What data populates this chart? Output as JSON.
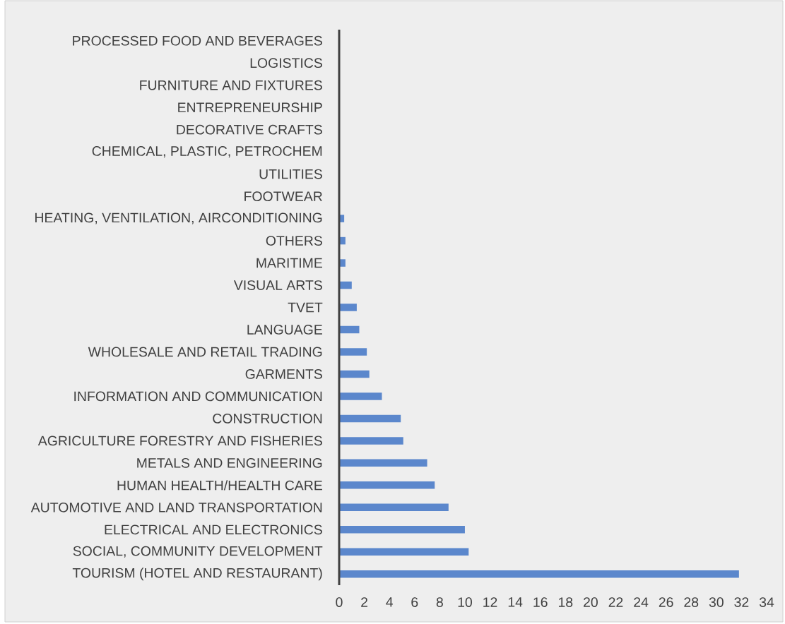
{
  "chart_data": {
    "type": "bar",
    "orientation": "horizontal",
    "categories": [
      "PROCESSED FOOD AND BEVERAGES",
      "LOGISTICS",
      "FURNITURE AND FIXTURES",
      "ENTREPRENEURSHIP",
      "DECORATIVE CRAFTS",
      "CHEMICAL, PLASTIC, PETROCHEM",
      "UTILITIES",
      "FOOTWEAR",
      "HEATING, VENTILATION, AIRCONDITIONING",
      "OTHERS",
      "MARITIME",
      "VISUAL ARTS",
      "TVET",
      "LANGUAGE",
      "WHOLESALE AND RETAIL TRADING",
      "GARMENTS",
      "INFORMATION AND COMMUNICATION",
      "CONSTRUCTION",
      "AGRICULTURE FORESTRY AND FISHERIES",
      "METALS AND ENGINEERING",
      "HUMAN HEALTH/HEALTH CARE",
      "AUTOMOTIVE AND LAND TRANSPORTATION",
      "ELECTRICAL AND ELECTRONICS",
      "SOCIAL, COMMUNITY DEVELOPMENT",
      "TOURISM (HOTEL AND RESTAURANT)"
    ],
    "values": [
      0,
      0,
      0,
      0,
      0,
      0,
      0,
      0,
      0.4,
      0.5,
      0.5,
      1.0,
      1.4,
      1.6,
      2.2,
      2.4,
      3.4,
      4.9,
      5.1,
      7.0,
      7.6,
      8.7,
      10.0,
      10.3,
      31.8
    ],
    "color": "#5b87cc",
    "xlim": [
      0,
      34
    ],
    "xticks": [
      0,
      2,
      4,
      6,
      8,
      10,
      12,
      14,
      16,
      18,
      20,
      22,
      24,
      26,
      28,
      30,
      32,
      34
    ]
  }
}
